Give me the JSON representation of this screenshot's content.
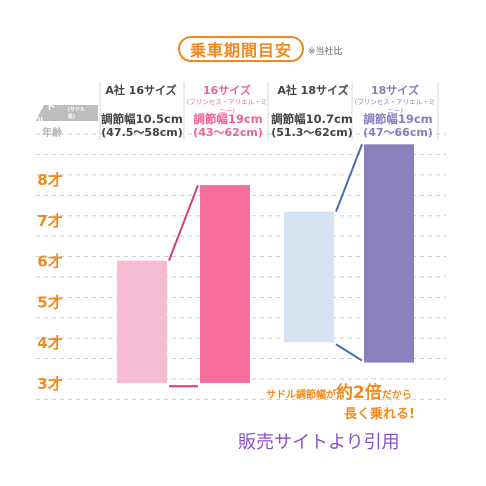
{
  "title": "乗車期間目安",
  "title_note": "※当社比",
  "row_labels": {
    "saddle": "サドル",
    "saddle_sub": "(サドル高)",
    "age": "年齢"
  },
  "columns": [
    {
      "name": "A社 16サイズ",
      "sub": "",
      "width_label": "調節幅10.5cm",
      "range_label": "(47.5〜58cm)"
    },
    {
      "name": "16サイズ",
      "sub": "(プリンセス・アリエル・ミニー)",
      "width_label": "調節幅19cm",
      "range_label": "(43〜62cm)"
    },
    {
      "name": "A社 18サイズ",
      "sub": "",
      "width_label": "調節幅10.7cm",
      "range_label": "(51.3〜62cm)"
    },
    {
      "name": "18サイズ",
      "sub": "(プリンセス・アリエル・ミニー)",
      "width_label": "調節幅19cm",
      "range_label": "(47〜66cm)"
    }
  ],
  "callout": {
    "prefix": "サドル調節幅が",
    "emph": "約2倍",
    "suffix": "だから",
    "line2": "長く乗れる!"
  },
  "source_note": "販売サイトより引用",
  "colors": {
    "accent": "#f08a1c",
    "bar1": "#f7bcd4",
    "bar2": "#f46d9c",
    "bar3": "#d6e3f3",
    "bar4": "#8c7fbd",
    "connector_pink": "#d63a7b",
    "connector_blue": "#4670a8",
    "grid": "#cfcfcf"
  },
  "chart_data": {
    "type": "bar",
    "subtype": "floating-range",
    "y_unit": "age (才)",
    "yticks": [
      3,
      4,
      5,
      6,
      7,
      8
    ],
    "ytick_labels": [
      "3才",
      "4才",
      "5才",
      "6才",
      "7才",
      "8才"
    ],
    "ylim": [
      2.5,
      9
    ],
    "grid": true,
    "categories": [
      "A社 16サイズ",
      "16サイズ",
      "A社 18サイズ",
      "18サイズ"
    ],
    "ranges": [
      {
        "category": "A社 16サイズ",
        "low": 3.0,
        "high": 6.0,
        "color": "#f7bcd4"
      },
      {
        "category": "16サイズ",
        "low": 3.0,
        "high": 7.85,
        "color": "#f46d9c"
      },
      {
        "category": "A社 18サイズ",
        "low": 4.0,
        "high": 7.2,
        "color": "#d6e3f3"
      },
      {
        "category": "18サイズ",
        "low": 3.5,
        "high": 8.85,
        "color": "#8c7fbd"
      }
    ],
    "connectors": [
      {
        "from_category": "A社 16サイズ",
        "to_category": "16サイズ",
        "from_value": 6.0,
        "to_value": 7.85,
        "color": "#d63a7b"
      },
      {
        "from_category": "A社 16サイズ",
        "to_category": "16サイズ",
        "from_value": 2.92,
        "to_value": 2.92,
        "color": "#d63a7b"
      },
      {
        "from_category": "A社 18サイズ",
        "to_category": "18サイズ",
        "from_value": 7.2,
        "to_value": 8.85,
        "color": "#4670a8"
      },
      {
        "from_category": "A社 18サイズ",
        "to_category": "18サイズ",
        "from_value": 3.95,
        "to_value": 3.55,
        "color": "#4670a8"
      }
    ]
  }
}
